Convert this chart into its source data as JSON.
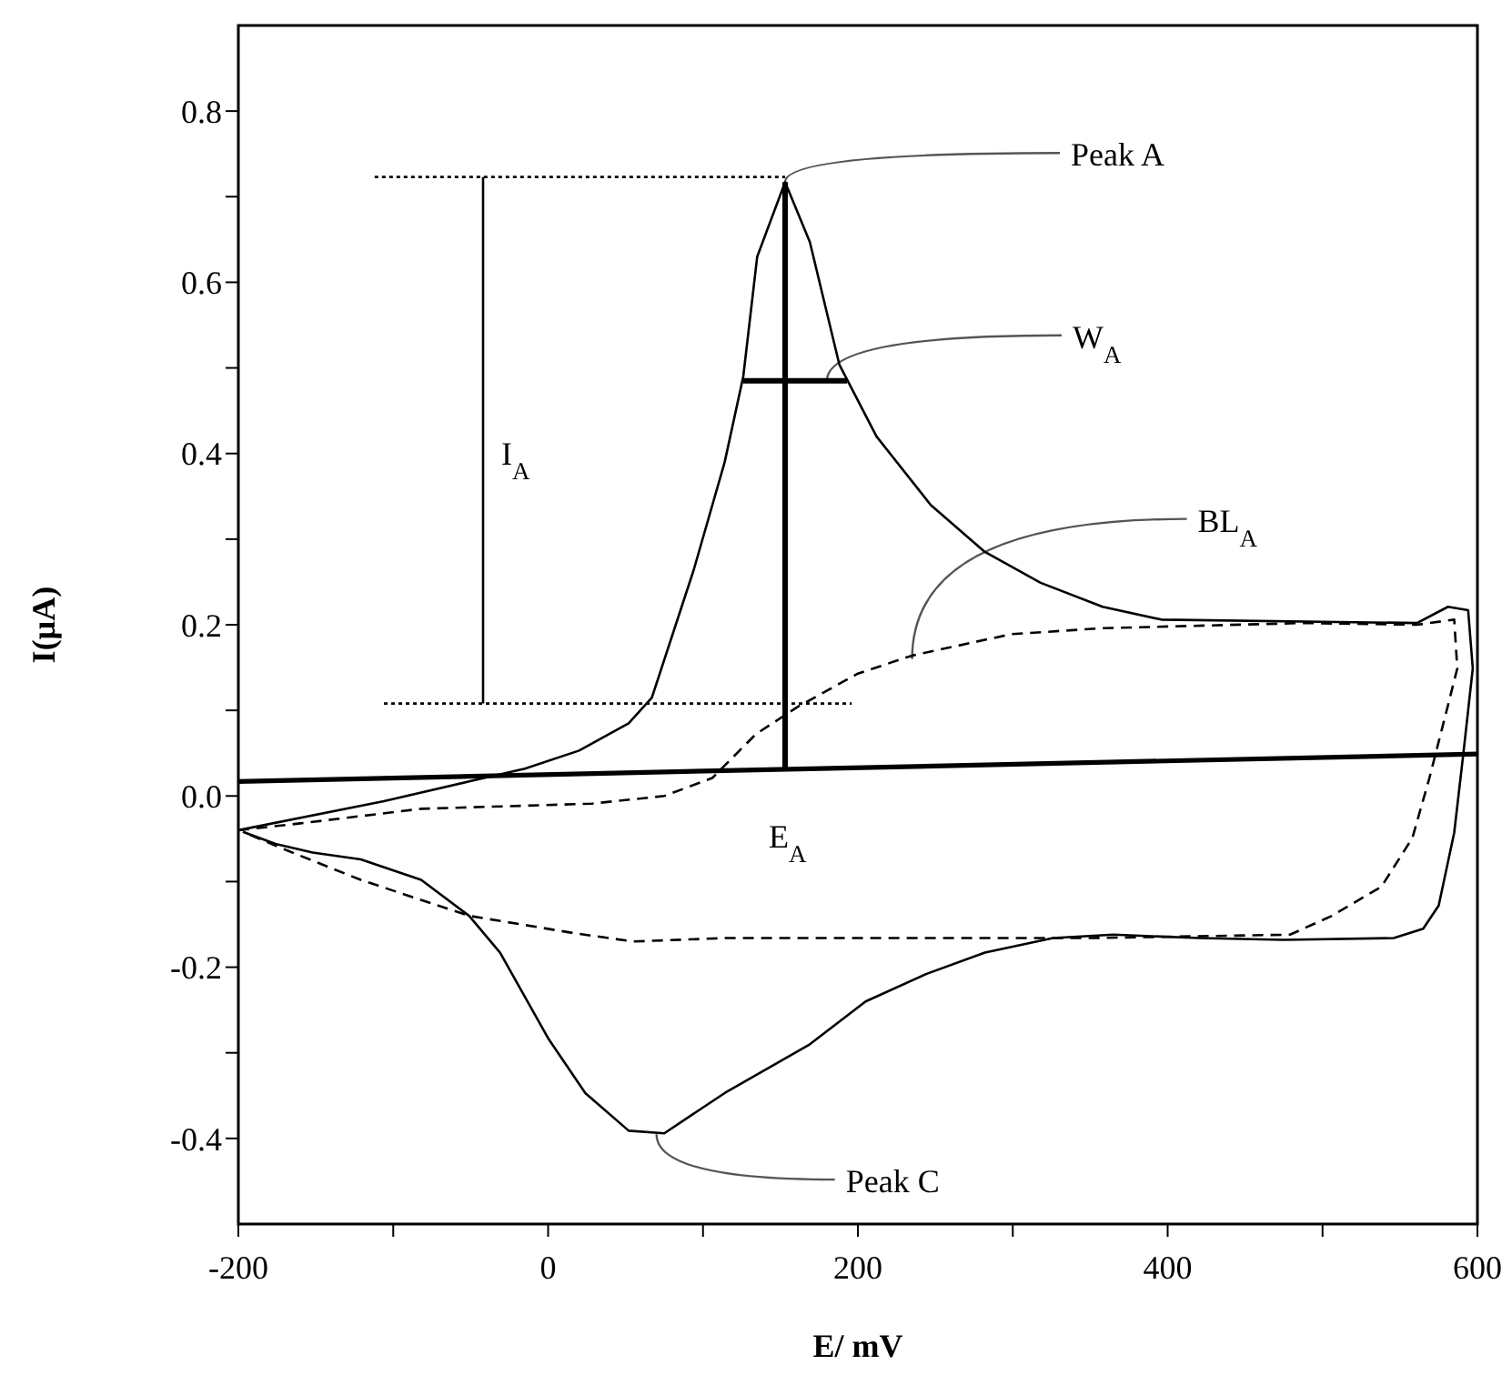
{
  "chart_data": {
    "type": "line",
    "xlabel": "E/ mV",
    "ylabel": "I(µA)",
    "xlim": [
      -200,
      600
    ],
    "ylim": [
      -0.5,
      0.9
    ],
    "xticks": [
      -200,
      {
        "value": -100,
        "label": null
      },
      0,
      {
        "value": 100,
        "label": null
      },
      200,
      {
        "value": 300,
        "label": null
      },
      400,
      {
        "value": 500,
        "label": null
      },
      600
    ],
    "yticks": [
      -0.4,
      {
        "value": -0.3,
        "label": null
      },
      -0.2,
      {
        "value": -0.1,
        "label": null
      },
      {
        "value": 0,
        "label": "0.0"
      },
      {
        "value": 0.1,
        "label": null
      },
      0.2,
      {
        "value": 0.3,
        "label": null
      },
      0.4,
      {
        "value": 0.5,
        "label": null
      },
      0.6,
      {
        "value": 0.7,
        "label": null
      },
      0.8
    ],
    "marker": "none",
    "series": [
      {
        "color": "#000000",
        "line_style": "solid",
        "x": [
          -200,
          -106,
          -51,
          -15,
          20,
          52,
          67,
          94,
          114,
          126,
          135,
          153,
          169,
          188,
          212,
          247,
          282,
          318,
          358,
          396,
          561,
          581,
          594,
          597,
          591,
          585,
          575,
          565,
          546,
          475,
          420,
          365,
          326,
          282,
          244,
          205,
          169,
          114,
          75,
          52,
          24,
          0,
          -31,
          -51,
          -82,
          -121,
          -152,
          -176,
          -197
        ],
        "values": [
          -0.04,
          -0.006,
          0.017,
          0.032,
          0.053,
          0.085,
          0.115,
          0.264,
          0.39,
          0.49,
          0.63,
          0.717,
          0.647,
          0.504,
          0.42,
          0.34,
          0.285,
          0.249,
          0.221,
          0.206,
          0.202,
          0.221,
          0.217,
          0.149,
          0.051,
          -0.043,
          -0.128,
          -0.155,
          -0.166,
          -0.168,
          -0.166,
          -0.162,
          -0.166,
          -0.183,
          -0.208,
          -0.24,
          -0.29,
          -0.347,
          -0.394,
          -0.391,
          -0.347,
          -0.283,
          -0.183,
          -0.14,
          -0.098,
          -0.074,
          -0.066,
          -0.056,
          -0.042
        ]
      },
      {
        "color": "#000000",
        "line_style": "dashed",
        "x": [
          -200,
          -160,
          -82,
          28,
          75,
          106,
          134,
          161,
          200,
          235,
          299,
          358,
          487,
          561,
          585,
          587,
          581,
          569,
          558,
          538,
          506,
          479,
          349,
          114,
          55,
          16,
          -51,
          -121,
          -168,
          -197
        ],
        "values": [
          -0.04,
          -0.032,
          -0.015,
          -0.009,
          0.0,
          0.021,
          0.072,
          0.104,
          0.143,
          0.164,
          0.189,
          0.196,
          0.202,
          0.2,
          0.206,
          0.149,
          0.106,
          0.021,
          -0.049,
          -0.106,
          -0.14,
          -0.162,
          -0.166,
          -0.166,
          -0.17,
          -0.16,
          -0.14,
          -0.098,
          -0.064,
          -0.042
        ]
      },
      {
        "color": "#000000",
        "line_style": "solid",
        "x": [
          -200,
          600
        ],
        "values": [
          0.017,
          0.049
        ]
      },
      {
        "color": "#000000",
        "line_style": "dotted",
        "x": [
          -112,
          153
        ],
        "values": [
          0.723,
          0.723
        ]
      },
      {
        "color": "#000000",
        "line_style": "dotted",
        "x": [
          -106,
          196
        ],
        "values": [
          0.108,
          0.108
        ]
      },
      {
        "color": "#000000",
        "line_style": "solid",
        "x": [
          -42,
          -42
        ],
        "values": [
          0.723,
          0.108
        ]
      },
      {
        "color": "#000000",
        "line_style": "solid",
        "x": [
          153,
          153
        ],
        "values": [
          0.031,
          0.717
        ]
      },
      {
        "color": "#000000",
        "line_style": "solid",
        "x": [
          126,
          193
        ],
        "values": [
          0.485,
          0.485
        ]
      }
    ],
    "annotations": [
      {
        "text": "Peak A",
        "x": 153,
        "y": 0.717
      },
      {
        "text": "W$_{A}$",
        "x": 180,
        "y": 0.485
      },
      {
        "text": "BL$_{A}$",
        "x": 235,
        "y": 0.16
      },
      {
        "text": "Peak C",
        "x": 70,
        "y": -0.395
      },
      {
        "text": "I$_{A}$",
        "x": -42,
        "y": 0.41
      },
      {
        "text": "E$_{A}$",
        "x": 153,
        "y": 0.031
      }
    ]
  }
}
